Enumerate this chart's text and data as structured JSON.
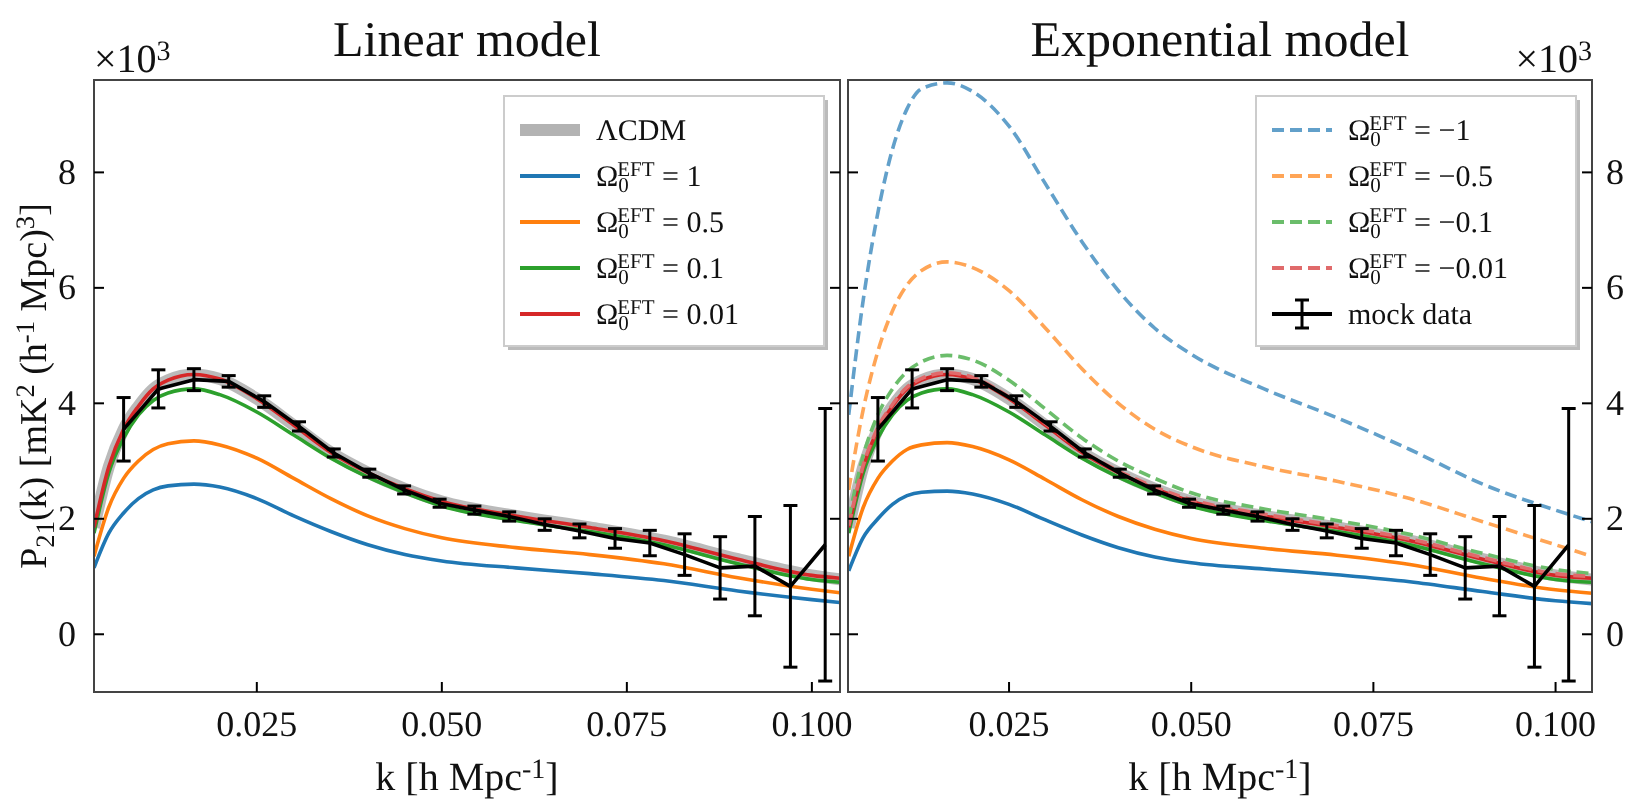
{
  "chart_data": [
    {
      "type": "line",
      "title": "Linear model",
      "xlabel": "k [h Mpc$^{-1}$]",
      "ylabel": "P$_{21}$(k) [mK$^{2}$ (h$^{-1}$ Mpc)$^{3}$]",
      "annotations": [
        "×10$^{3}$"
      ],
      "xlim": [
        0.003,
        0.1038
      ],
      "xticks": [
        {
          "value": 0.025,
          "label": "0.025"
        },
        {
          "value": 0.05,
          "label": "0.050"
        },
        {
          "value": 0.075,
          "label": "0.075"
        },
        {
          "value": 0.1,
          "label": "0.100"
        }
      ],
      "ylim": [
        -1.0,
        9.6
      ],
      "yticks": [
        0,
        2,
        4,
        6,
        8
      ],
      "grid": false,
      "legend": "top right",
      "marker": "none",
      "series": [
        {
          "name": "ΛCDM",
          "color": "#b3b3b3",
          "x": [
            0.003,
            0.005,
            0.007,
            0.009,
            0.011,
            0.013,
            0.0165,
            0.02,
            0.025,
            0.03,
            0.035,
            0.04,
            0.045,
            0.05,
            0.06,
            0.07,
            0.08,
            0.09,
            0.1,
            0.1038
          ],
          "values": [
            1.85,
            2.9,
            3.55,
            3.95,
            4.25,
            4.4,
            4.5,
            4.42,
            4.08,
            3.62,
            3.15,
            2.8,
            2.52,
            2.3,
            2.05,
            1.85,
            1.62,
            1.3,
            1.02,
            0.95
          ]
        },
        {
          "name": "Ω$_{0}$$^{EFT}$ = 1",
          "color": "#1f77b4",
          "x": [
            0.003,
            0.005,
            0.007,
            0.009,
            0.011,
            0.013,
            0.0165,
            0.02,
            0.025,
            0.03,
            0.035,
            0.04,
            0.045,
            0.05,
            0.06,
            0.07,
            0.08,
            0.09,
            0.1,
            0.1038
          ],
          "values": [
            1.15,
            1.75,
            2.1,
            2.35,
            2.5,
            2.57,
            2.6,
            2.55,
            2.35,
            2.05,
            1.78,
            1.55,
            1.38,
            1.27,
            1.15,
            1.05,
            0.93,
            0.75,
            0.6,
            0.55
          ]
        },
        {
          "name": "Ω$_{0}$$^{EFT}$ = 0.5",
          "color": "#ff7f0e",
          "x": [
            0.003,
            0.005,
            0.007,
            0.009,
            0.011,
            0.013,
            0.0165,
            0.02,
            0.025,
            0.03,
            0.035,
            0.04,
            0.045,
            0.05,
            0.06,
            0.07,
            0.08,
            0.09,
            0.1,
            0.1038
          ],
          "values": [
            1.35,
            2.2,
            2.7,
            3.0,
            3.2,
            3.3,
            3.35,
            3.28,
            3.05,
            2.7,
            2.35,
            2.05,
            1.83,
            1.67,
            1.5,
            1.38,
            1.22,
            0.98,
            0.78,
            0.72
          ]
        },
        {
          "name": "Ω$_{0}$$^{EFT}$ = 0.1",
          "color": "#2ca02c",
          "x": [
            0.003,
            0.005,
            0.007,
            0.009,
            0.011,
            0.013,
            0.0165,
            0.02,
            0.025,
            0.03,
            0.035,
            0.04,
            0.045,
            0.05,
            0.06,
            0.07,
            0.08,
            0.09,
            0.1,
            0.1038
          ],
          "values": [
            1.75,
            2.8,
            3.4,
            3.8,
            4.05,
            4.18,
            4.25,
            4.15,
            3.85,
            3.45,
            3.05,
            2.72,
            2.45,
            2.22,
            1.97,
            1.78,
            1.55,
            1.22,
            0.95,
            0.9
          ]
        },
        {
          "name": "Ω$_{0}$$^{EFT}$ = 0.01",
          "color": "#d62728",
          "x": [
            0.003,
            0.005,
            0.007,
            0.009,
            0.011,
            0.013,
            0.0165,
            0.02,
            0.025,
            0.03,
            0.035,
            0.04,
            0.045,
            0.05,
            0.06,
            0.07,
            0.08,
            0.09,
            0.1,
            0.1038
          ],
          "values": [
            1.85,
            2.9,
            3.55,
            3.95,
            4.25,
            4.4,
            4.5,
            4.42,
            4.08,
            3.62,
            3.15,
            2.8,
            2.52,
            2.3,
            2.05,
            1.85,
            1.62,
            1.3,
            1.02,
            0.97
          ]
        },
        {
          "color": "#000000",
          "x": [
            0.007,
            0.0117,
            0.0165,
            0.0212,
            0.026,
            0.0307,
            0.0354,
            0.0402,
            0.0449,
            0.0497,
            0.0544,
            0.0591,
            0.0639,
            0.0686,
            0.0734,
            0.0781,
            0.0828,
            0.0876,
            0.0923,
            0.0971,
            0.1018
          ],
          "values": [
            3.55,
            4.25,
            4.41,
            4.38,
            4.03,
            3.6,
            3.14,
            2.79,
            2.5,
            2.27,
            2.15,
            2.04,
            1.9,
            1.79,
            1.66,
            1.58,
            1.38,
            1.15,
            1.18,
            0.83,
            1.55
          ],
          "errors": [
            0.55,
            0.33,
            0.19,
            0.1,
            0.1,
            0.08,
            0.07,
            0.07,
            0.07,
            0.07,
            0.07,
            0.08,
            0.1,
            0.12,
            0.17,
            0.22,
            0.36,
            0.54,
            0.86,
            1.4,
            2.36
          ]
        }
      ]
    },
    {
      "type": "line",
      "title": "Exponential model",
      "xlabel": "k [h Mpc$^{-1}$]",
      "annotations": [
        "×10$^{3}$"
      ],
      "xlim": [
        0.0029,
        0.105
      ],
      "xticks": [
        {
          "value": 0.025,
          "label": "0.025"
        },
        {
          "value": 0.05,
          "label": "0.050"
        },
        {
          "value": 0.075,
          "label": "0.075"
        },
        {
          "value": 0.1,
          "label": "0.100"
        }
      ],
      "ylim": [
        -1.0,
        9.6
      ],
      "yticks": [
        0,
        2,
        4,
        6,
        8
      ],
      "grid": false,
      "legend": "top right",
      "marker": "none",
      "series": [
        {
          "color": "#b3b3b3",
          "x": [
            0.003,
            0.005,
            0.007,
            0.009,
            0.011,
            0.013,
            0.0165,
            0.02,
            0.025,
            0.03,
            0.035,
            0.04,
            0.045,
            0.05,
            0.06,
            0.07,
            0.08,
            0.09,
            0.1,
            0.105
          ],
          "values": [
            1.85,
            2.9,
            3.55,
            3.95,
            4.25,
            4.4,
            4.5,
            4.42,
            4.08,
            3.62,
            3.15,
            2.8,
            2.52,
            2.3,
            2.05,
            1.85,
            1.62,
            1.3,
            1.02,
            0.95
          ]
        },
        {
          "color": "#1f77b4",
          "x": [
            0.003,
            0.005,
            0.007,
            0.009,
            0.011,
            0.013,
            0.0165,
            0.02,
            0.025,
            0.03,
            0.035,
            0.04,
            0.045,
            0.05,
            0.06,
            0.07,
            0.08,
            0.09,
            0.1,
            0.105
          ],
          "values": [
            1.1,
            1.68,
            2.0,
            2.25,
            2.4,
            2.46,
            2.48,
            2.43,
            2.25,
            1.98,
            1.72,
            1.5,
            1.34,
            1.24,
            1.13,
            1.03,
            0.91,
            0.74,
            0.58,
            0.53
          ]
        },
        {
          "color": "#ff7f0e",
          "x": [
            0.003,
            0.005,
            0.007,
            0.009,
            0.011,
            0.013,
            0.0165,
            0.02,
            0.025,
            0.03,
            0.035,
            0.04,
            0.045,
            0.05,
            0.06,
            0.07,
            0.08,
            0.09,
            0.1,
            0.105
          ],
          "values": [
            1.35,
            2.2,
            2.7,
            3.0,
            3.2,
            3.28,
            3.32,
            3.25,
            3.02,
            2.68,
            2.33,
            2.04,
            1.82,
            1.66,
            1.49,
            1.37,
            1.21,
            0.97,
            0.77,
            0.71
          ]
        },
        {
          "color": "#2ca02c",
          "x": [
            0.003,
            0.005,
            0.007,
            0.009,
            0.011,
            0.013,
            0.0165,
            0.02,
            0.025,
            0.03,
            0.035,
            0.04,
            0.045,
            0.05,
            0.06,
            0.07,
            0.08,
            0.09,
            0.1,
            0.105
          ],
          "values": [
            1.75,
            2.8,
            3.4,
            3.8,
            4.05,
            4.18,
            4.25,
            4.15,
            3.85,
            3.45,
            3.05,
            2.72,
            2.45,
            2.22,
            1.97,
            1.78,
            1.55,
            1.22,
            0.95,
            0.9
          ]
        },
        {
          "color": "#d62728",
          "x": [
            0.003,
            0.005,
            0.007,
            0.009,
            0.011,
            0.013,
            0.0165,
            0.02,
            0.025,
            0.03,
            0.035,
            0.04,
            0.045,
            0.05,
            0.06,
            0.07,
            0.08,
            0.09,
            0.1,
            0.105
          ],
          "values": [
            1.85,
            2.9,
            3.55,
            3.95,
            4.25,
            4.4,
            4.5,
            4.42,
            4.08,
            3.62,
            3.15,
            2.8,
            2.52,
            2.3,
            2.05,
            1.85,
            1.62,
            1.3,
            1.02,
            0.97
          ]
        },
        {
          "name": "Ω$_{0}$$^{EFT}$ = −1",
          "color": "#62a0ca",
          "line_style": "dashed",
          "x": [
            0.003,
            0.005,
            0.007,
            0.009,
            0.011,
            0.013,
            0.0165,
            0.02,
            0.025,
            0.03,
            0.035,
            0.04,
            0.045,
            0.05,
            0.06,
            0.07,
            0.08,
            0.09,
            0.1,
            0.105
          ],
          "values": [
            3.8,
            5.8,
            7.3,
            8.4,
            9.1,
            9.45,
            9.55,
            9.4,
            8.8,
            7.8,
            6.8,
            5.95,
            5.3,
            4.85,
            4.25,
            3.75,
            3.2,
            2.6,
            2.15,
            1.95
          ]
        },
        {
          "name": "Ω$_{0}$$^{EFT}$ = −0.5",
          "color": "#ffa556",
          "line_style": "dashed",
          "x": [
            0.003,
            0.005,
            0.007,
            0.009,
            0.011,
            0.013,
            0.0165,
            0.02,
            0.025,
            0.03,
            0.035,
            0.04,
            0.045,
            0.05,
            0.06,
            0.07,
            0.08,
            0.09,
            0.1,
            0.105
          ],
          "values": [
            2.5,
            3.9,
            4.9,
            5.6,
            6.05,
            6.3,
            6.45,
            6.35,
            5.95,
            5.3,
            4.6,
            4.0,
            3.55,
            3.25,
            2.9,
            2.65,
            2.35,
            1.95,
            1.55,
            1.35
          ]
        },
        {
          "name": "Ω$_{0}$$^{EFT}$ = −0.1",
          "color": "#6bbd6b",
          "line_style": "dashed",
          "x": [
            0.003,
            0.005,
            0.007,
            0.009,
            0.011,
            0.013,
            0.0165,
            0.02,
            0.025,
            0.03,
            0.035,
            0.04,
            0.045,
            0.05,
            0.06,
            0.07,
            0.08,
            0.09,
            0.1,
            0.105
          ],
          "values": [
            2.0,
            3.1,
            3.8,
            4.25,
            4.55,
            4.72,
            4.83,
            4.75,
            4.4,
            3.9,
            3.4,
            3.0,
            2.7,
            2.45,
            2.17,
            1.97,
            1.73,
            1.4,
            1.12,
            1.05
          ]
        },
        {
          "name": "Ω$_{0}$$^{EFT}$ = −0.01",
          "color": "#e06a6b",
          "line_style": "dashed",
          "x": [
            0.003,
            0.005,
            0.007,
            0.009,
            0.011,
            0.013,
            0.0165,
            0.02,
            0.025,
            0.03,
            0.035,
            0.04,
            0.045,
            0.05,
            0.06,
            0.07,
            0.08,
            0.09,
            0.1,
            0.105
          ],
          "values": [
            1.88,
            2.93,
            3.58,
            3.98,
            4.28,
            4.43,
            4.53,
            4.45,
            4.11,
            3.65,
            3.18,
            2.83,
            2.55,
            2.33,
            2.08,
            1.88,
            1.65,
            1.33,
            1.05,
            1.0
          ]
        },
        {
          "name": "mock data",
          "color": "#000000",
          "x": [
            0.007,
            0.0117,
            0.0165,
            0.0212,
            0.026,
            0.0307,
            0.0354,
            0.0402,
            0.0449,
            0.0497,
            0.0544,
            0.0591,
            0.0639,
            0.0686,
            0.0734,
            0.0781,
            0.0828,
            0.0876,
            0.0923,
            0.0971,
            0.1018
          ],
          "values": [
            3.55,
            4.25,
            4.41,
            4.38,
            4.03,
            3.6,
            3.14,
            2.79,
            2.5,
            2.27,
            2.15,
            2.04,
            1.9,
            1.79,
            1.66,
            1.58,
            1.38,
            1.15,
            1.18,
            0.83,
            1.55
          ],
          "errors": [
            0.55,
            0.33,
            0.19,
            0.1,
            0.1,
            0.08,
            0.07,
            0.07,
            0.07,
            0.07,
            0.07,
            0.08,
            0.1,
            0.12,
            0.17,
            0.22,
            0.36,
            0.54,
            0.86,
            1.4,
            2.36
          ]
        }
      ]
    }
  ]
}
